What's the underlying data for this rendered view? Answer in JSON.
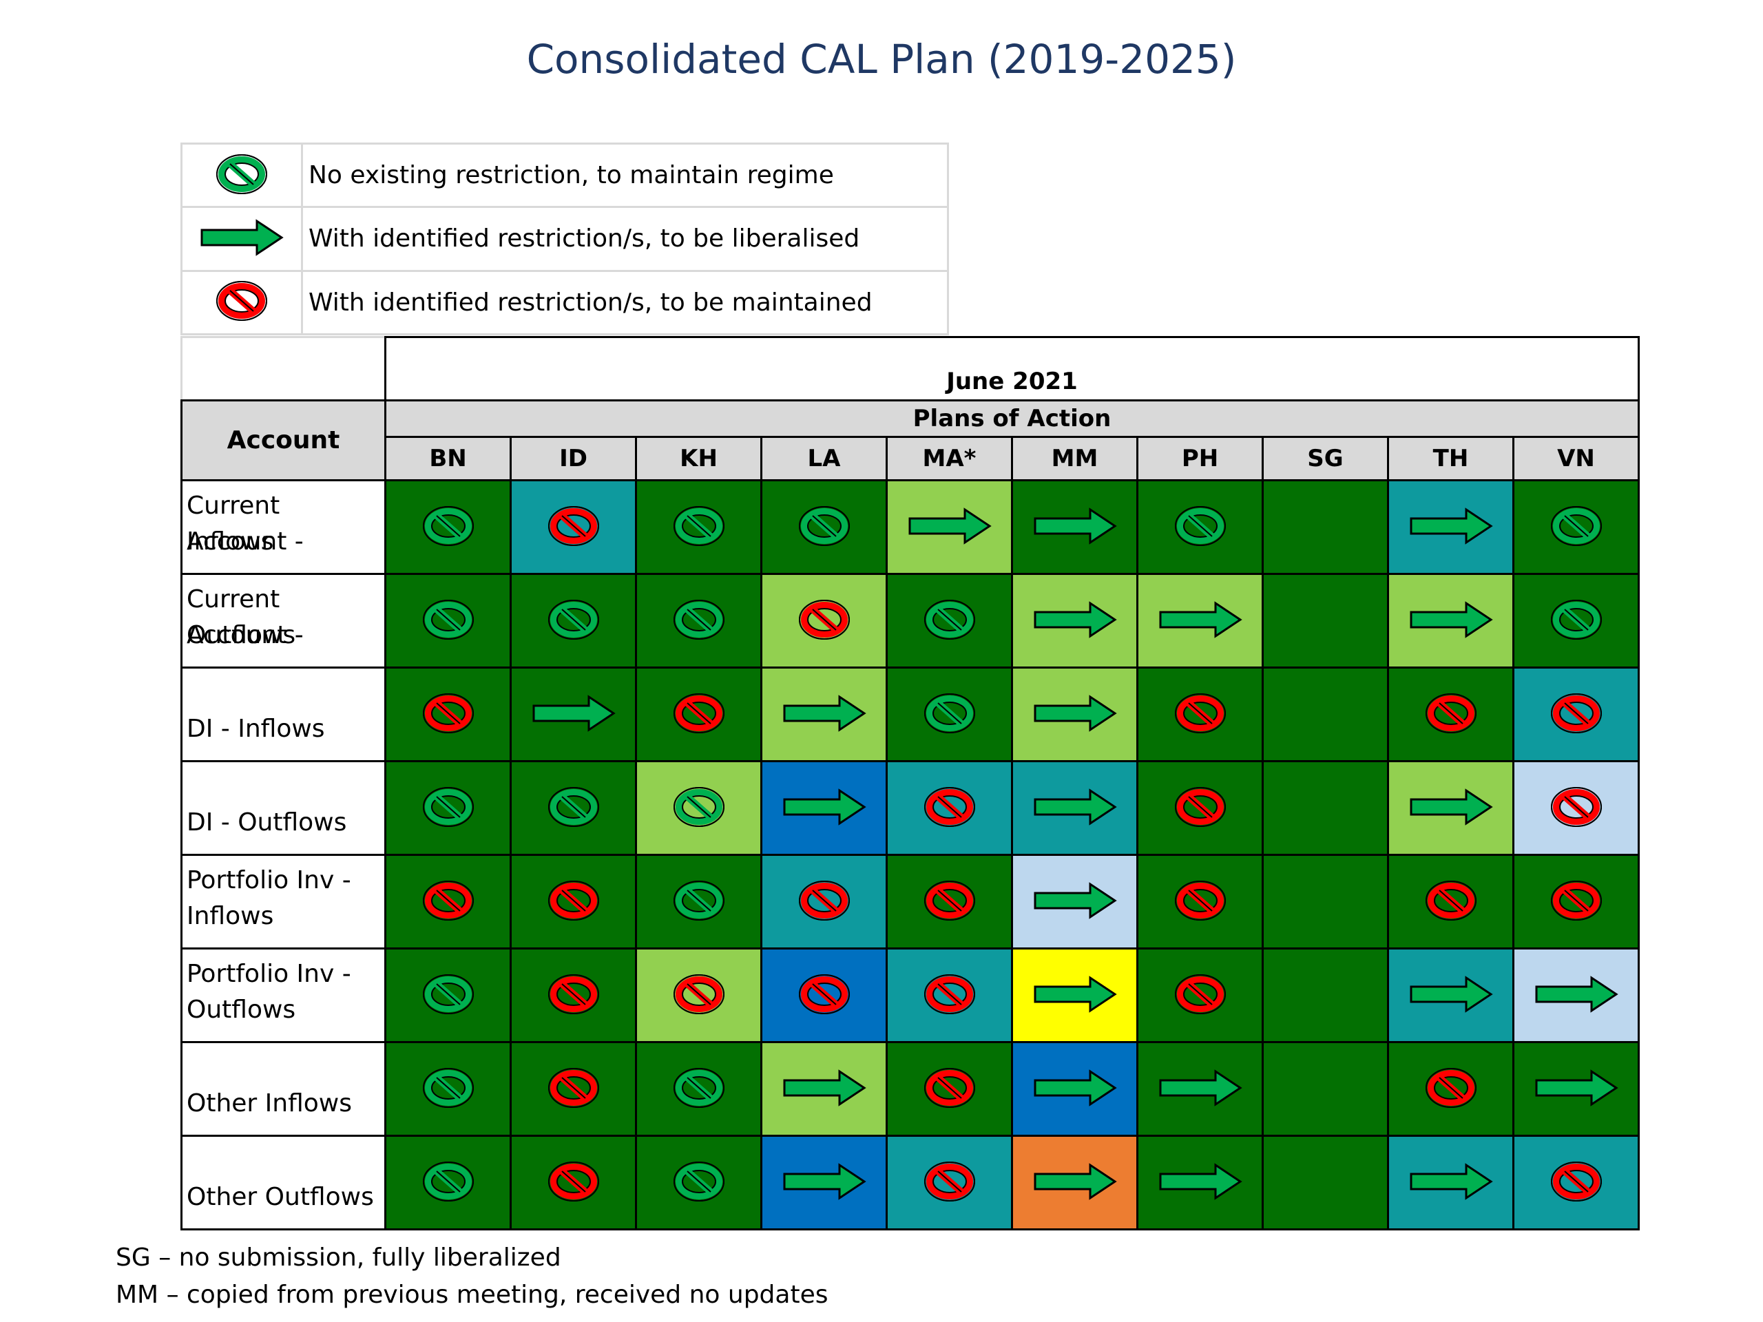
{
  "title": "Consolidated CAL Plan (2019-2025)",
  "legend": [
    {
      "icon": "green-prohibit",
      "text": "No existing restriction, to maintain regime"
    },
    {
      "icon": "green-arrow",
      "text": "With identified restriction/s, to be liberalised"
    },
    {
      "icon": "red-prohibit",
      "text": "With identified restriction/s, to be maintained"
    }
  ],
  "header": {
    "date": "June 2021",
    "subtitle": "Plans of Action",
    "account_label": "Account",
    "columns": [
      "BN",
      "ID",
      "KH",
      "LA",
      "MA*",
      "MM",
      "PH",
      "SG",
      "TH",
      "VN"
    ]
  },
  "colors": {
    "dark_green": "#037002",
    "light_green": "#92d050",
    "teal": "#0e9a9e",
    "blue": "#0070c0",
    "light_blue": "#bdd7ee",
    "yellow": "#ffff00",
    "orange": "#ed7d31"
  },
  "rows": [
    {
      "label": [
        "Current Account -",
        "Inflows"
      ],
      "cells": [
        {
          "bg": "dark_green",
          "icon": "green-prohibit"
        },
        {
          "bg": "teal",
          "icon": "red-prohibit"
        },
        {
          "bg": "dark_green",
          "icon": "green-prohibit"
        },
        {
          "bg": "dark_green",
          "icon": "green-prohibit"
        },
        {
          "bg": "light_green",
          "icon": "green-arrow"
        },
        {
          "bg": "dark_green",
          "icon": "green-arrow"
        },
        {
          "bg": "dark_green",
          "icon": "green-prohibit"
        },
        {
          "bg": "dark_green",
          "icon": ""
        },
        {
          "bg": "teal",
          "icon": "green-arrow"
        },
        {
          "bg": "dark_green",
          "icon": "green-prohibit"
        }
      ]
    },
    {
      "label": [
        "Current Account -",
        "Outflows"
      ],
      "cells": [
        {
          "bg": "dark_green",
          "icon": "green-prohibit"
        },
        {
          "bg": "dark_green",
          "icon": "green-prohibit"
        },
        {
          "bg": "dark_green",
          "icon": "green-prohibit"
        },
        {
          "bg": "light_green",
          "icon": "red-prohibit"
        },
        {
          "bg": "dark_green",
          "icon": "green-prohibit"
        },
        {
          "bg": "light_green",
          "icon": "green-arrow"
        },
        {
          "bg": "light_green",
          "icon": "green-arrow"
        },
        {
          "bg": "dark_green",
          "icon": ""
        },
        {
          "bg": "light_green",
          "icon": "green-arrow"
        },
        {
          "bg": "dark_green",
          "icon": "green-prohibit"
        }
      ]
    },
    {
      "label": [
        "",
        "DI - Inflows"
      ],
      "cells": [
        {
          "bg": "dark_green",
          "icon": "red-prohibit"
        },
        {
          "bg": "dark_green",
          "icon": "green-arrow"
        },
        {
          "bg": "dark_green",
          "icon": "red-prohibit"
        },
        {
          "bg": "light_green",
          "icon": "green-arrow"
        },
        {
          "bg": "dark_green",
          "icon": "green-prohibit"
        },
        {
          "bg": "light_green",
          "icon": "green-arrow"
        },
        {
          "bg": "dark_green",
          "icon": "red-prohibit"
        },
        {
          "bg": "dark_green",
          "icon": ""
        },
        {
          "bg": "dark_green",
          "icon": "red-prohibit"
        },
        {
          "bg": "teal",
          "icon": "red-prohibit"
        }
      ]
    },
    {
      "label": [
        "",
        "DI - Outflows"
      ],
      "cells": [
        {
          "bg": "dark_green",
          "icon": "green-prohibit"
        },
        {
          "bg": "dark_green",
          "icon": "green-prohibit"
        },
        {
          "bg": "light_green",
          "icon": "green-prohibit"
        },
        {
          "bg": "blue",
          "icon": "green-arrow"
        },
        {
          "bg": "teal",
          "icon": "red-prohibit"
        },
        {
          "bg": "teal",
          "icon": "green-arrow"
        },
        {
          "bg": "dark_green",
          "icon": "red-prohibit"
        },
        {
          "bg": "dark_green",
          "icon": ""
        },
        {
          "bg": "light_green",
          "icon": "green-arrow"
        },
        {
          "bg": "light_blue",
          "icon": "red-prohibit"
        }
      ]
    },
    {
      "label": [
        "Portfolio Inv -",
        "Inflows"
      ],
      "cells": [
        {
          "bg": "dark_green",
          "icon": "red-prohibit"
        },
        {
          "bg": "dark_green",
          "icon": "red-prohibit"
        },
        {
          "bg": "dark_green",
          "icon": "green-prohibit"
        },
        {
          "bg": "teal",
          "icon": "red-prohibit"
        },
        {
          "bg": "dark_green",
          "icon": "red-prohibit"
        },
        {
          "bg": "light_blue",
          "icon": "green-arrow"
        },
        {
          "bg": "dark_green",
          "icon": "red-prohibit"
        },
        {
          "bg": "dark_green",
          "icon": ""
        },
        {
          "bg": "dark_green",
          "icon": "red-prohibit"
        },
        {
          "bg": "dark_green",
          "icon": "red-prohibit"
        }
      ]
    },
    {
      "label": [
        "Portfolio Inv -",
        "Outflows"
      ],
      "cells": [
        {
          "bg": "dark_green",
          "icon": "green-prohibit"
        },
        {
          "bg": "dark_green",
          "icon": "red-prohibit"
        },
        {
          "bg": "light_green",
          "icon": "red-prohibit"
        },
        {
          "bg": "blue",
          "icon": "red-prohibit"
        },
        {
          "bg": "teal",
          "icon": "red-prohibit"
        },
        {
          "bg": "yellow",
          "icon": "green-arrow"
        },
        {
          "bg": "dark_green",
          "icon": "red-prohibit"
        },
        {
          "bg": "dark_green",
          "icon": ""
        },
        {
          "bg": "teal",
          "icon": "green-arrow"
        },
        {
          "bg": "light_blue",
          "icon": "green-arrow"
        }
      ]
    },
    {
      "label": [
        "",
        "Other Inflows"
      ],
      "cells": [
        {
          "bg": "dark_green",
          "icon": "green-prohibit"
        },
        {
          "bg": "dark_green",
          "icon": "red-prohibit"
        },
        {
          "bg": "dark_green",
          "icon": "green-prohibit"
        },
        {
          "bg": "light_green",
          "icon": "green-arrow"
        },
        {
          "bg": "dark_green",
          "icon": "red-prohibit"
        },
        {
          "bg": "blue",
          "icon": "green-arrow"
        },
        {
          "bg": "dark_green",
          "icon": "green-arrow"
        },
        {
          "bg": "dark_green",
          "icon": ""
        },
        {
          "bg": "dark_green",
          "icon": "red-prohibit"
        },
        {
          "bg": "dark_green",
          "icon": "green-arrow"
        }
      ]
    },
    {
      "label": [
        "",
        "Other Outflows"
      ],
      "cells": [
        {
          "bg": "dark_green",
          "icon": "green-prohibit"
        },
        {
          "bg": "dark_green",
          "icon": "red-prohibit"
        },
        {
          "bg": "dark_green",
          "icon": "green-prohibit"
        },
        {
          "bg": "blue",
          "icon": "green-arrow"
        },
        {
          "bg": "teal",
          "icon": "red-prohibit"
        },
        {
          "bg": "orange",
          "icon": "green-arrow"
        },
        {
          "bg": "dark_green",
          "icon": "green-arrow"
        },
        {
          "bg": "dark_green",
          "icon": ""
        },
        {
          "bg": "teal",
          "icon": "green-arrow"
        },
        {
          "bg": "teal",
          "icon": "red-prohibit"
        }
      ]
    }
  ],
  "footnotes": [
    "SG – no submission, fully liberalized",
    "MM – copied from previous meeting, received no updates"
  ]
}
